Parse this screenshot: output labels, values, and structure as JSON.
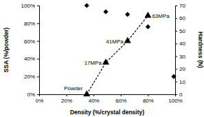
{
  "chart_data": {
    "type": "scatter",
    "x_label": "Density (%/crystal density)",
    "y_label": "SSA (%/powder)",
    "y2_label": "Hardness (N)",
    "xlim": [
      0,
      100
    ],
    "xticks": [
      {
        "value": 0,
        "label": "0%"
      },
      {
        "value": 20,
        "label": "20%"
      },
      {
        "value": 40,
        "label": "40%"
      },
      {
        "value": 60,
        "label": "60%"
      },
      {
        "value": 80,
        "label": "80%"
      },
      {
        "value": 100,
        "label": "100%"
      }
    ],
    "ylim": [
      0,
      100
    ],
    "yticks": [
      {
        "value": 0,
        "label": "0%"
      },
      {
        "value": 20,
        "label": "20%"
      },
      {
        "value": 40,
        "label": "40%"
      },
      {
        "value": 60,
        "label": "60%"
      },
      {
        "value": 80,
        "label": "80%"
      },
      {
        "value": 100,
        "label": "100%"
      }
    ],
    "y2lim": [
      0,
      70
    ],
    "y2ticks": [
      0,
      10,
      20,
      30,
      40,
      50,
      60,
      70
    ],
    "grid": false,
    "series": [
      {
        "type": "scatter",
        "color": "#000000",
        "marker": "diamond",
        "x": [
          35,
          49,
          65,
          80,
          99
        ],
        "values": [
          100,
          93,
          90,
          76,
          20
        ]
      },
      {
        "type": "line",
        "color": "#000000",
        "marker": "triangle",
        "line_style": "dashed",
        "axis": "y2",
        "x": [
          35,
          49,
          65,
          80
        ],
        "values": [
          0,
          25,
          42,
          62
        ],
        "labels": [
          "Powder",
          "17MPa",
          "41MPa",
          "63MPa"
        ]
      }
    ]
  }
}
